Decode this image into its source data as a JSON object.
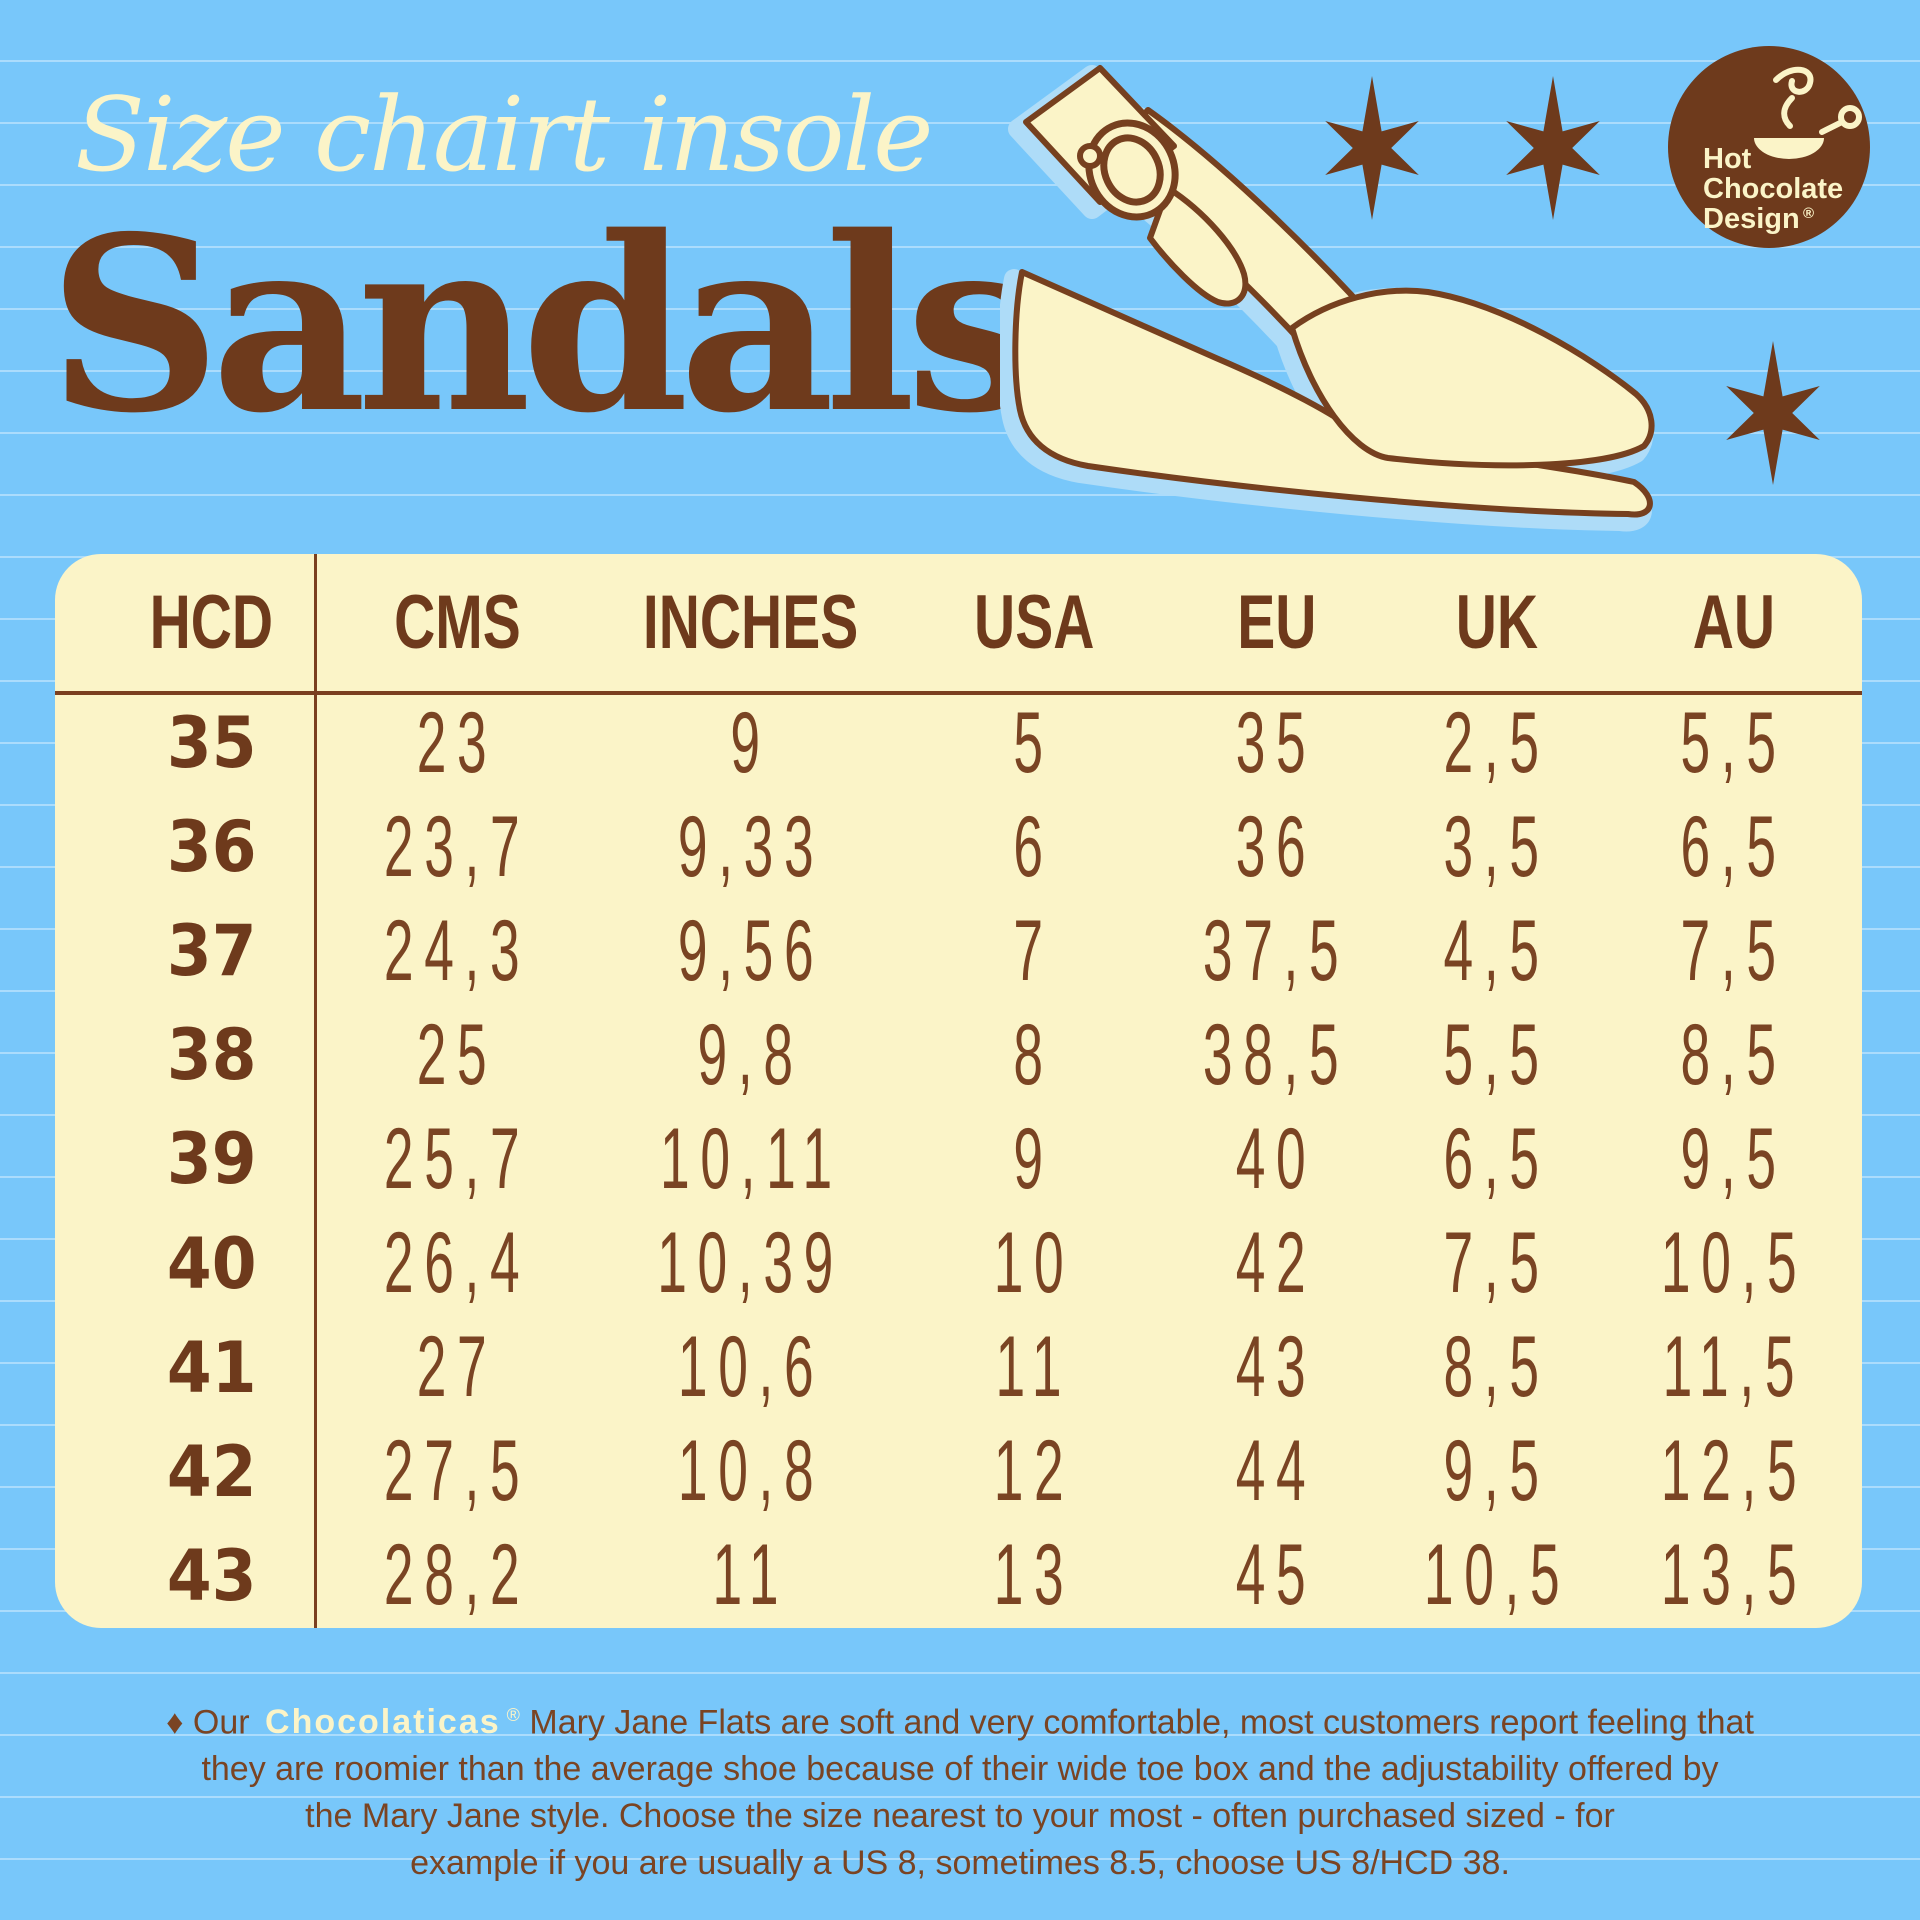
{
  "header": {
    "subtitle": "Size chairt insole",
    "title": "Sandals"
  },
  "logo": {
    "line1": "Hot",
    "line2": "Chocolate",
    "line3": "Design",
    "registered": "®"
  },
  "size_table": {
    "columns": [
      "HCD",
      "CMS",
      "INCHES",
      "USA",
      "EU",
      "UK",
      "AU"
    ],
    "rows": [
      [
        "35",
        "23",
        "9",
        "5",
        "35",
        "2,5",
        "5,5"
      ],
      [
        "36",
        "23,7",
        "9,33",
        "6",
        "36",
        "3,5",
        "6,5"
      ],
      [
        "37",
        "24,3",
        "9,56",
        "7",
        "37,5",
        "4,5",
        "7,5"
      ],
      [
        "38",
        "25",
        "9,8",
        "8",
        "38,5",
        "5,5",
        "8,5"
      ],
      [
        "39",
        "25,7",
        "10,11",
        "9",
        "40",
        "6,5",
        "9,5"
      ],
      [
        "40",
        "26,4",
        "10,39",
        "10",
        "42",
        "7,5",
        "10,5"
      ],
      [
        "41",
        "27",
        "10,6",
        "11",
        "43",
        "8,5",
        "11,5"
      ],
      [
        "42",
        "27,5",
        "10,8",
        "12",
        "44",
        "9,5",
        "12,5"
      ],
      [
        "43",
        "28,2",
        "11",
        "13",
        "45",
        "10,5",
        "13,5"
      ]
    ]
  },
  "footnote": {
    "line1_prefix": "♦ Our",
    "brand": "Chocolaticas",
    "brand_registered": "®",
    "line1_suffix": "Mary Jane Flats are soft and very comfortable, most customers report feeling that",
    "line2": "they are roomier than the average shoe because of their wide toe box and the adjustability offered by",
    "line3": "the Mary Jane style. Choose the size nearest to your most - often  purchased sized - for",
    "line4": "example if you are usually a US 8, sometimes 8.5, choose US 8/HCD 38."
  },
  "colors": {
    "background_blue": "#78C7FA",
    "rule_line": "#A9DCFC",
    "brown": "#6E3A1C",
    "number_brown": "#7A4423",
    "cream": "#FBF4C8",
    "shadow_blue": "#AEDCF8"
  }
}
